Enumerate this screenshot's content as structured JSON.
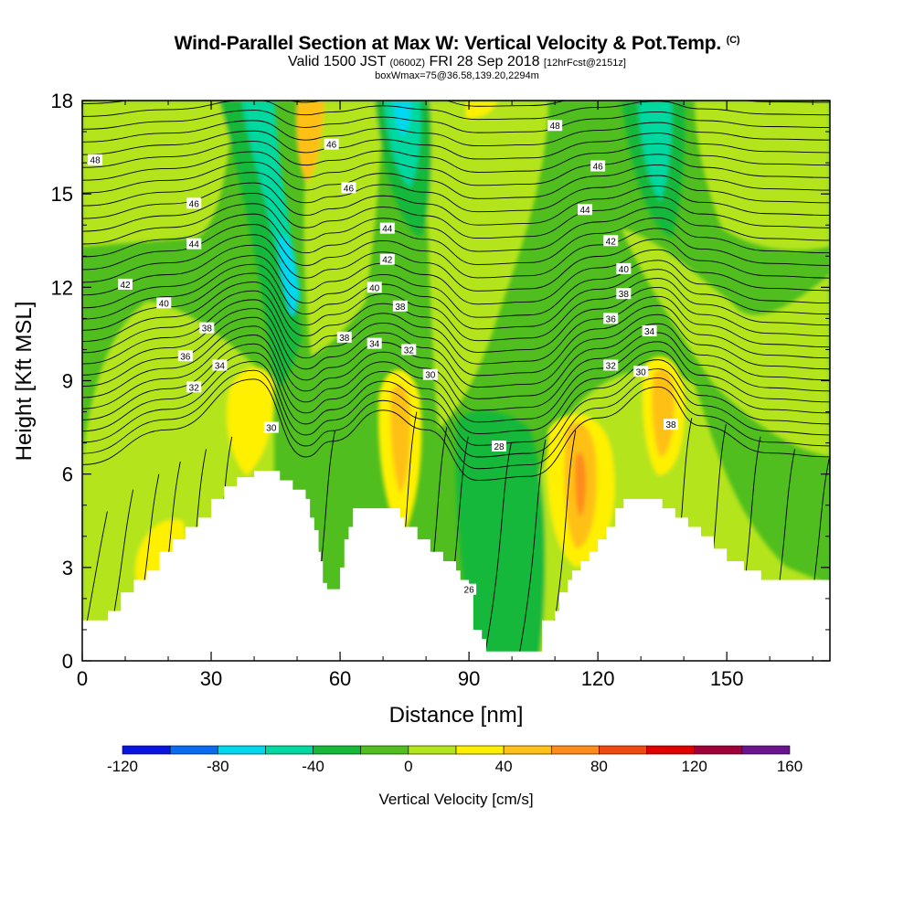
{
  "header": {
    "title": "Wind-Parallel Section at Max W: Vertical Velocity & Pot.Temp.",
    "copyright": "(C)",
    "valid_prefix": "Valid 1500 JST",
    "valid_utc": "(0600Z)",
    "valid_date": "FRI 28 Sep 2018",
    "forecast": "[12hrFcst@2151z]",
    "box_info": "boxWmax=75@36.58,139.20,2294m"
  },
  "chart_data": {
    "type": "heatmap",
    "xlabel": "Distance [nm]",
    "ylabel": "Height [Kft MSL]",
    "xlim": [
      0,
      174
    ],
    "ylim": [
      0,
      18
    ],
    "xticks": [
      "0",
      "30",
      "60",
      "90",
      "120",
      "150"
    ],
    "xtick_values": [
      0,
      30,
      60,
      90,
      120,
      150
    ],
    "yticks": [
      "0",
      "3",
      "6",
      "9",
      "12",
      "15",
      "18"
    ],
    "ytick_values": [
      0,
      3,
      6,
      9,
      12,
      15,
      18
    ],
    "colorbar": {
      "label": "Vertical Velocity [cm/s]",
      "range": [
        -120,
        160
      ],
      "step": 20,
      "tick_labels": [
        "-120",
        "-80",
        "-40",
        "0",
        "40",
        "80",
        "120",
        "160"
      ],
      "tick_values": [
        -120,
        -80,
        -40,
        0,
        40,
        80,
        120,
        160
      ],
      "colors": [
        "#0a14e0",
        "#0a6af0",
        "#00d8f0",
        "#00d8a0",
        "#16b83a",
        "#4fbe1e",
        "#b4e41a",
        "#fff000",
        "#ffc018",
        "#ff8c1a",
        "#f04a10",
        "#e00000",
        "#a00038",
        "#6a1490"
      ]
    },
    "terrain_kft": [
      [
        0,
        1.3
      ],
      [
        6,
        1.6
      ],
      [
        9,
        2.2
      ],
      [
        12,
        2.6
      ],
      [
        15,
        2.9
      ],
      [
        18,
        3.5
      ],
      [
        21,
        3.9
      ],
      [
        24,
        4.3
      ],
      [
        27,
        4.6
      ],
      [
        30,
        5.2
      ],
      [
        33,
        5.6
      ],
      [
        36,
        5.9
      ],
      [
        40,
        6.1
      ],
      [
        45,
        6.1
      ],
      [
        46,
        5.8
      ],
      [
        49,
        5.5
      ],
      [
        52,
        5.2
      ],
      [
        53,
        4.6
      ],
      [
        54,
        4.2
      ],
      [
        55,
        3.5
      ],
      [
        55.5,
        3.2
      ],
      [
        56,
        2.5
      ],
      [
        57,
        2.3
      ],
      [
        59,
        2.3
      ],
      [
        60,
        3.0
      ],
      [
        61,
        3.9
      ],
      [
        62,
        4.3
      ],
      [
        63,
        4.9
      ],
      [
        68,
        4.9
      ],
      [
        73,
        4.9
      ],
      [
        74,
        4.6
      ],
      [
        75,
        4.3
      ],
      [
        78,
        3.9
      ],
      [
        81,
        3.5
      ],
      [
        84,
        3.2
      ],
      [
        87,
        2.9
      ],
      [
        88,
        2.6
      ],
      [
        90,
        2.3
      ],
      [
        91,
        1.0
      ],
      [
        93,
        0.7
      ],
      [
        94,
        0.3
      ],
      [
        106,
        0.3
      ],
      [
        107,
        1.3
      ],
      [
        110,
        1.6
      ],
      [
        111,
        2.2
      ],
      [
        113,
        2.6
      ],
      [
        114,
        2.9
      ],
      [
        116,
        3.2
      ],
      [
        118,
        3.5
      ],
      [
        120,
        3.9
      ],
      [
        122,
        4.3
      ],
      [
        124,
        4.9
      ],
      [
        126,
        5.2
      ],
      [
        131,
        5.2
      ],
      [
        133,
        5.2
      ],
      [
        135,
        4.9
      ],
      [
        138,
        4.6
      ],
      [
        141,
        4.3
      ],
      [
        144,
        4.0
      ],
      [
        147,
        3.6
      ],
      [
        150,
        3.2
      ],
      [
        154,
        2.9
      ],
      [
        158,
        2.6
      ],
      [
        165,
        2.6
      ],
      [
        170,
        2.6
      ],
      [
        174,
        2.3
      ]
    ],
    "theta_contour_labels": [
      {
        "text": "48",
        "x": 3,
        "y": 16.1
      },
      {
        "text": "46",
        "x": 26,
        "y": 14.7
      },
      {
        "text": "44",
        "x": 26,
        "y": 13.4
      },
      {
        "text": "42",
        "x": 10,
        "y": 12.1
      },
      {
        "text": "40",
        "x": 19,
        "y": 11.5
      },
      {
        "text": "38",
        "x": 29,
        "y": 10.7
      },
      {
        "text": "36",
        "x": 24,
        "y": 9.8
      },
      {
        "text": "34",
        "x": 32,
        "y": 9.5
      },
      {
        "text": "32",
        "x": 26,
        "y": 8.8
      },
      {
        "text": "30",
        "x": 44,
        "y": 7.5
      },
      {
        "text": "46",
        "x": 58,
        "y": 16.6
      },
      {
        "text": "46",
        "x": 62,
        "y": 15.2
      },
      {
        "text": "44",
        "x": 71,
        "y": 13.9
      },
      {
        "text": "42",
        "x": 71,
        "y": 12.9
      },
      {
        "text": "40",
        "x": 68,
        "y": 12.0
      },
      {
        "text": "38",
        "x": 74,
        "y": 11.4
      },
      {
        "text": "38",
        "x": 61,
        "y": 10.4
      },
      {
        "text": "34",
        "x": 68,
        "y": 10.2
      },
      {
        "text": "32",
        "x": 76,
        "y": 10.0
      },
      {
        "text": "30",
        "x": 81,
        "y": 9.2
      },
      {
        "text": "28",
        "x": 97,
        "y": 6.9
      },
      {
        "text": "26",
        "x": 90,
        "y": 2.3
      },
      {
        "text": "48",
        "x": 110,
        "y": 17.2
      },
      {
        "text": "46",
        "x": 120,
        "y": 15.9
      },
      {
        "text": "44",
        "x": 117,
        "y": 14.5
      },
      {
        "text": "42",
        "x": 123,
        "y": 13.5
      },
      {
        "text": "40",
        "x": 126,
        "y": 12.6
      },
      {
        "text": "38",
        "x": 126,
        "y": 11.8
      },
      {
        "text": "36",
        "x": 123,
        "y": 11.0
      },
      {
        "text": "34",
        "x": 132,
        "y": 10.6
      },
      {
        "text": "32",
        "x": 123,
        "y": 9.5
      },
      {
        "text": "30",
        "x": 130,
        "y": 9.3
      },
      {
        "text": "38",
        "x": 137,
        "y": 7.6
      }
    ]
  }
}
